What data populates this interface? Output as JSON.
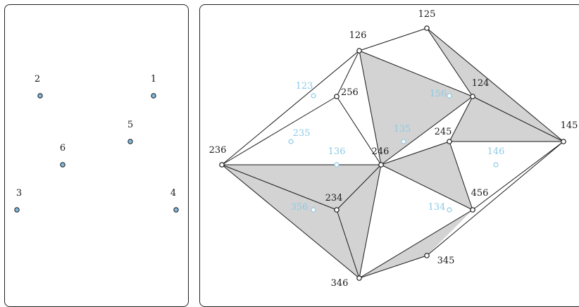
{
  "left": {
    "points": [
      {
        "label": "1",
        "color": "#7fb8e0"
      },
      {
        "label": "2",
        "color": "#7fb8e0"
      },
      {
        "label": "3",
        "color": "#7fb8e0"
      },
      {
        "label": "4",
        "color": "#7fb8e0"
      },
      {
        "label": "5",
        "color": "#7fb8e0"
      },
      {
        "label": "6",
        "color": "#7fb8e0"
      }
    ]
  },
  "right": {
    "vertices": [
      "125",
      "126",
      "124",
      "145",
      "256",
      "245",
      "236",
      "246",
      "456",
      "234",
      "346",
      "345"
    ],
    "dual_points": [
      "123",
      "156",
      "235",
      "135",
      "136",
      "146",
      "356",
      "134"
    ],
    "shaded_triangles": [
      [
        "126",
        "124",
        "246"
      ],
      [
        "125",
        "124",
        "145"
      ],
      [
        "124",
        "245",
        "145"
      ],
      [
        "236",
        "246",
        "234"
      ],
      [
        "236",
        "234",
        "346"
      ],
      [
        "234",
        "246",
        "346"
      ],
      [
        "246",
        "245",
        "456"
      ],
      [
        "346",
        "456",
        "345"
      ]
    ],
    "colors": {
      "shade": "#d3d3d3",
      "edge": "#1a1a1a",
      "dual": "#8ecae6"
    }
  }
}
